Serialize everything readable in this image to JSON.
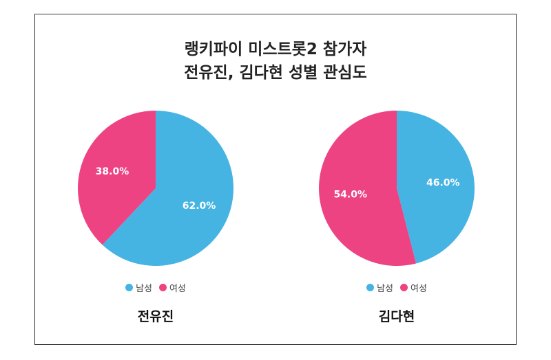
{
  "title_lines": [
    "랭키파이 미스트롯2 참가자",
    "전유진, 김다현 성별 관심도"
  ],
  "colors": {
    "male": "#45b4e3",
    "female": "#ee4383"
  },
  "legend": [
    "남성",
    "여성"
  ],
  "chart_data": [
    {
      "type": "pie",
      "name": "전유진",
      "categories": [
        "남성",
        "여성"
      ],
      "values": [
        62.0,
        38.0
      ],
      "value_labels": [
        "62.0%",
        "38.0%"
      ]
    },
    {
      "type": "pie",
      "name": "김다현",
      "categories": [
        "남성",
        "여성"
      ],
      "values": [
        46.0,
        54.0
      ],
      "value_labels": [
        "46.0%",
        "54.0%"
      ]
    }
  ]
}
